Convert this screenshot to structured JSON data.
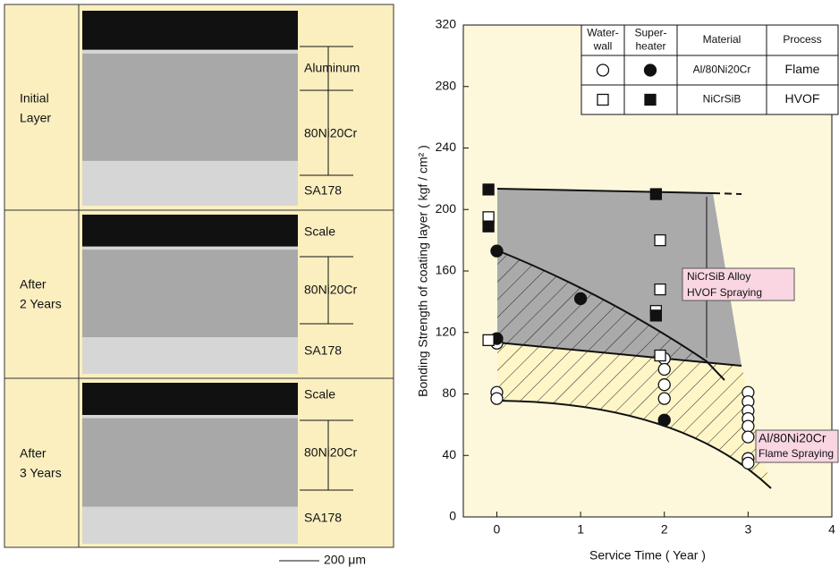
{
  "panels": [
    {
      "label": [
        "Initial",
        "Layer"
      ],
      "layers": [
        "Aluminum",
        "80Ni20Cr",
        "SA178"
      ]
    },
    {
      "label": [
        "After",
        "2 Years"
      ],
      "layers": [
        "Scale",
        "80Ni20Cr",
        "SA178"
      ]
    },
    {
      "label": [
        "After",
        "3 Years"
      ],
      "layers": [
        "Scale",
        "80Ni20Cr",
        "SA178"
      ]
    }
  ],
  "scale_bar": "200 μm",
  "chart_data": {
    "type": "scatter",
    "x_label": "Service Time ( Year )",
    "y_label": "Bonding  Strength of coating layer ( kgf / cm² )",
    "xlim": [
      -0.4,
      4
    ],
    "xticks": [
      0,
      1,
      2,
      3,
      4
    ],
    "ylim": [
      0,
      320
    ],
    "yticks": [
      0,
      40,
      80,
      120,
      160,
      200,
      240,
      280,
      320
    ],
    "legend": {
      "columns": [
        [
          "Water-",
          "wall"
        ],
        [
          "Super-",
          "heater"
        ],
        [
          "Material"
        ],
        [
          "Process"
        ]
      ],
      "rows": [
        {
          "material": "Al/80Ni20Cr",
          "process": "Flame"
        },
        {
          "material": "NiCrSiB",
          "process": "HVOF"
        }
      ]
    },
    "series": [
      {
        "marker": "circle",
        "fill": "#ffffff",
        "color": "#111111",
        "x": [
          0,
          0,
          0,
          2,
          2,
          2,
          2,
          3,
          3,
          3,
          3,
          3,
          3,
          3,
          3
        ],
        "values": [
          113,
          81,
          77,
          103,
          96,
          86,
          77,
          81,
          75,
          69,
          64,
          59,
          52,
          38,
          35
        ]
      },
      {
        "marker": "circle",
        "fill": "#111111",
        "color": "#111111",
        "x": [
          0,
          0,
          1,
          2
        ],
        "values": [
          173,
          116,
          142,
          63
        ]
      },
      {
        "marker": "square",
        "fill": "#ffffff",
        "color": "#111111",
        "x": [
          -0.1,
          -0.1,
          1.95,
          1.95,
          1.9,
          1.95
        ],
        "values": [
          195,
          115,
          180,
          148,
          134,
          105
        ]
      },
      {
        "marker": "square",
        "fill": "#111111",
        "color": "#111111",
        "x": [
          -0.1,
          -0.1,
          1.9,
          1.9
        ],
        "values": [
          213,
          189,
          210,
          131
        ]
      }
    ],
    "annotations": [
      [
        "NiCrSiB Alloy",
        "HVOF Spraying"
      ],
      [
        "Al/80Ni20Cr",
        "Flame Spraying"
      ]
    ]
  }
}
